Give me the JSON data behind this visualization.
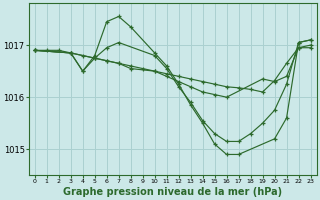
{
  "bg_color": "#cce8e8",
  "grid_color": "#aad0d0",
  "line_color": "#2d6a2d",
  "marker_color": "#2d6a2d",
  "xlabel": "Graphe pression niveau de la mer (hPa)",
  "xlabel_fontsize": 7,
  "ylim": [
    1014.5,
    1017.8
  ],
  "xlim": [
    -0.5,
    23.5
  ],
  "yticks": [
    1015,
    1016,
    1017
  ],
  "xticks": [
    0,
    1,
    2,
    3,
    4,
    5,
    6,
    7,
    8,
    9,
    10,
    11,
    12,
    13,
    14,
    15,
    16,
    17,
    18,
    19,
    20,
    21,
    22,
    23
  ],
  "series1_x": [
    0,
    1,
    2,
    3,
    4,
    5,
    6,
    7,
    8,
    9,
    10,
    11,
    12,
    13,
    14,
    15,
    16,
    17,
    18,
    19,
    20,
    21,
    22,
    23
  ],
  "series1_y": [
    1016.9,
    1016.9,
    1016.9,
    1016.85,
    1016.8,
    1016.75,
    1016.7,
    1016.65,
    1016.6,
    1016.55,
    1016.5,
    1016.45,
    1016.4,
    1016.35,
    1016.3,
    1016.25,
    1016.2,
    1016.18,
    1016.15,
    1016.1,
    1016.32,
    1016.65,
    1016.95,
    1016.95
  ],
  "series2_x": [
    0,
    3,
    4,
    5,
    6,
    7,
    8,
    10,
    11,
    12,
    13,
    14,
    15,
    16,
    17,
    20,
    21,
    22,
    23
  ],
  "series2_y": [
    1016.9,
    1016.85,
    1016.5,
    1016.8,
    1017.45,
    1017.55,
    1017.35,
    1016.85,
    1016.6,
    1016.25,
    1015.85,
    1015.5,
    1015.1,
    1014.9,
    1014.9,
    1015.2,
    1015.6,
    1017.05,
    1017.1
  ],
  "series3_x": [
    0,
    3,
    4,
    5,
    6,
    7,
    10,
    11,
    12,
    13,
    14,
    15,
    16,
    17,
    18,
    19,
    20,
    21,
    22,
    23
  ],
  "series3_y": [
    1016.9,
    1016.85,
    1016.5,
    1016.75,
    1016.95,
    1017.05,
    1016.8,
    1016.55,
    1016.2,
    1015.9,
    1015.55,
    1015.3,
    1015.15,
    1015.15,
    1015.3,
    1015.5,
    1015.75,
    1016.25,
    1017.05,
    1017.1
  ],
  "series4_x": [
    0,
    3,
    5,
    6,
    7,
    8,
    10,
    11,
    12,
    13,
    14,
    15,
    16,
    19,
    20,
    21,
    22,
    23
  ],
  "series4_y": [
    1016.9,
    1016.85,
    1016.75,
    1016.7,
    1016.65,
    1016.55,
    1016.5,
    1016.4,
    1016.3,
    1016.2,
    1016.1,
    1016.05,
    1016.0,
    1016.35,
    1016.3,
    1016.4,
    1016.95,
    1017.0
  ]
}
